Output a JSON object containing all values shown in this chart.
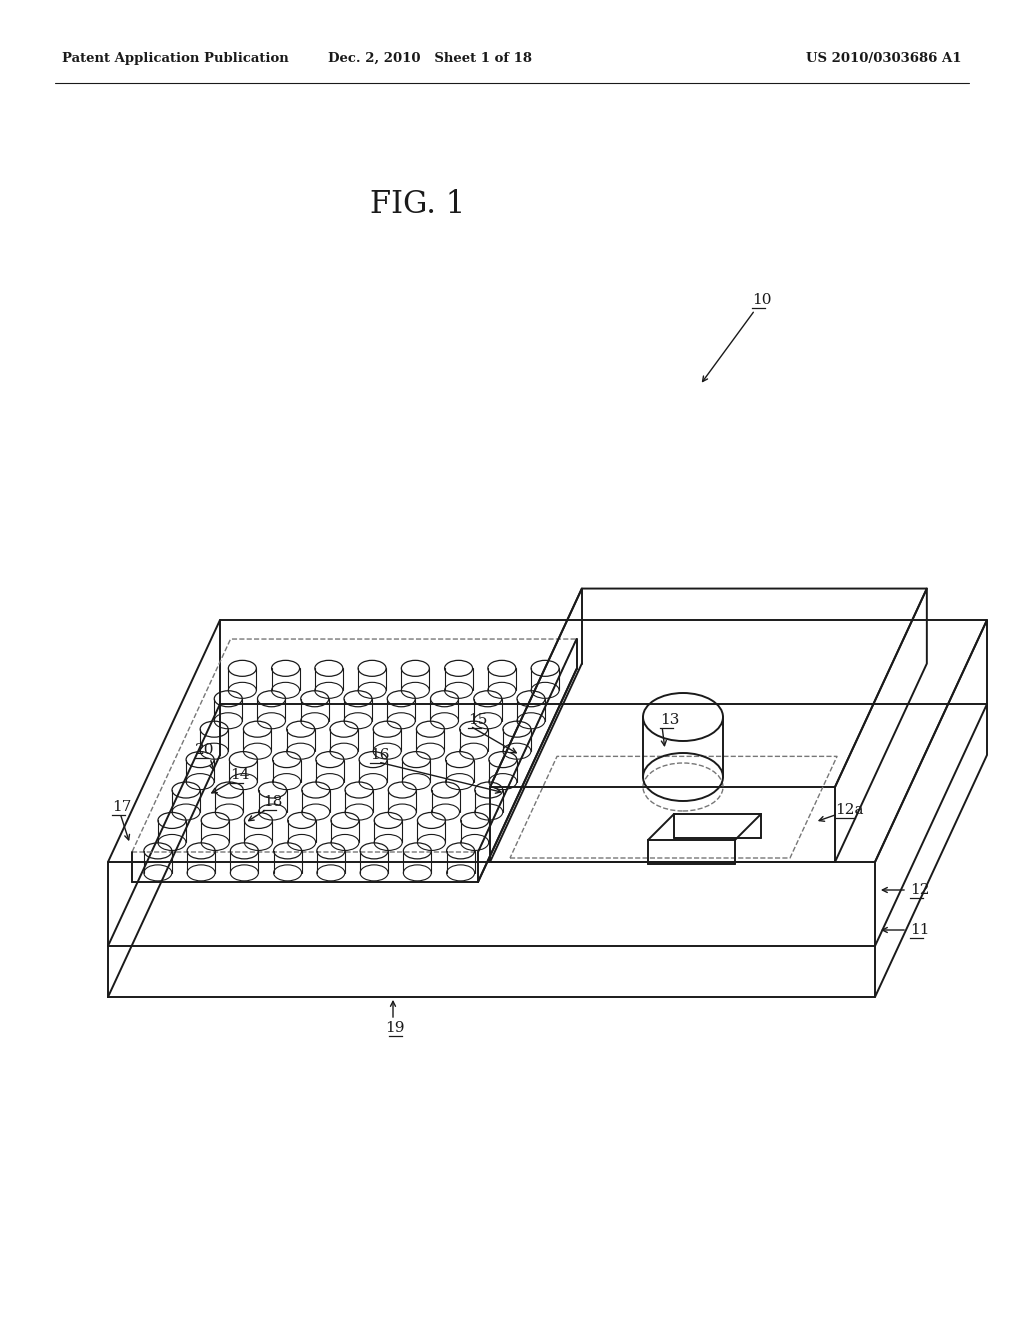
{
  "header_left": "Patent Application Publication",
  "header_mid": "Dec. 2, 2010   Sheet 1 of 18",
  "header_right": "US 2010/0303686 A1",
  "fig_label": "FIG. 1",
  "bg_color": "#ffffff",
  "line_color": "#1a1a1a",
  "dashed_color": "#777777",
  "lw_main": 1.4,
  "lw_thin": 1.0,
  "fs_header": 9.5,
  "fs_fig": 22,
  "fs_label": 11
}
